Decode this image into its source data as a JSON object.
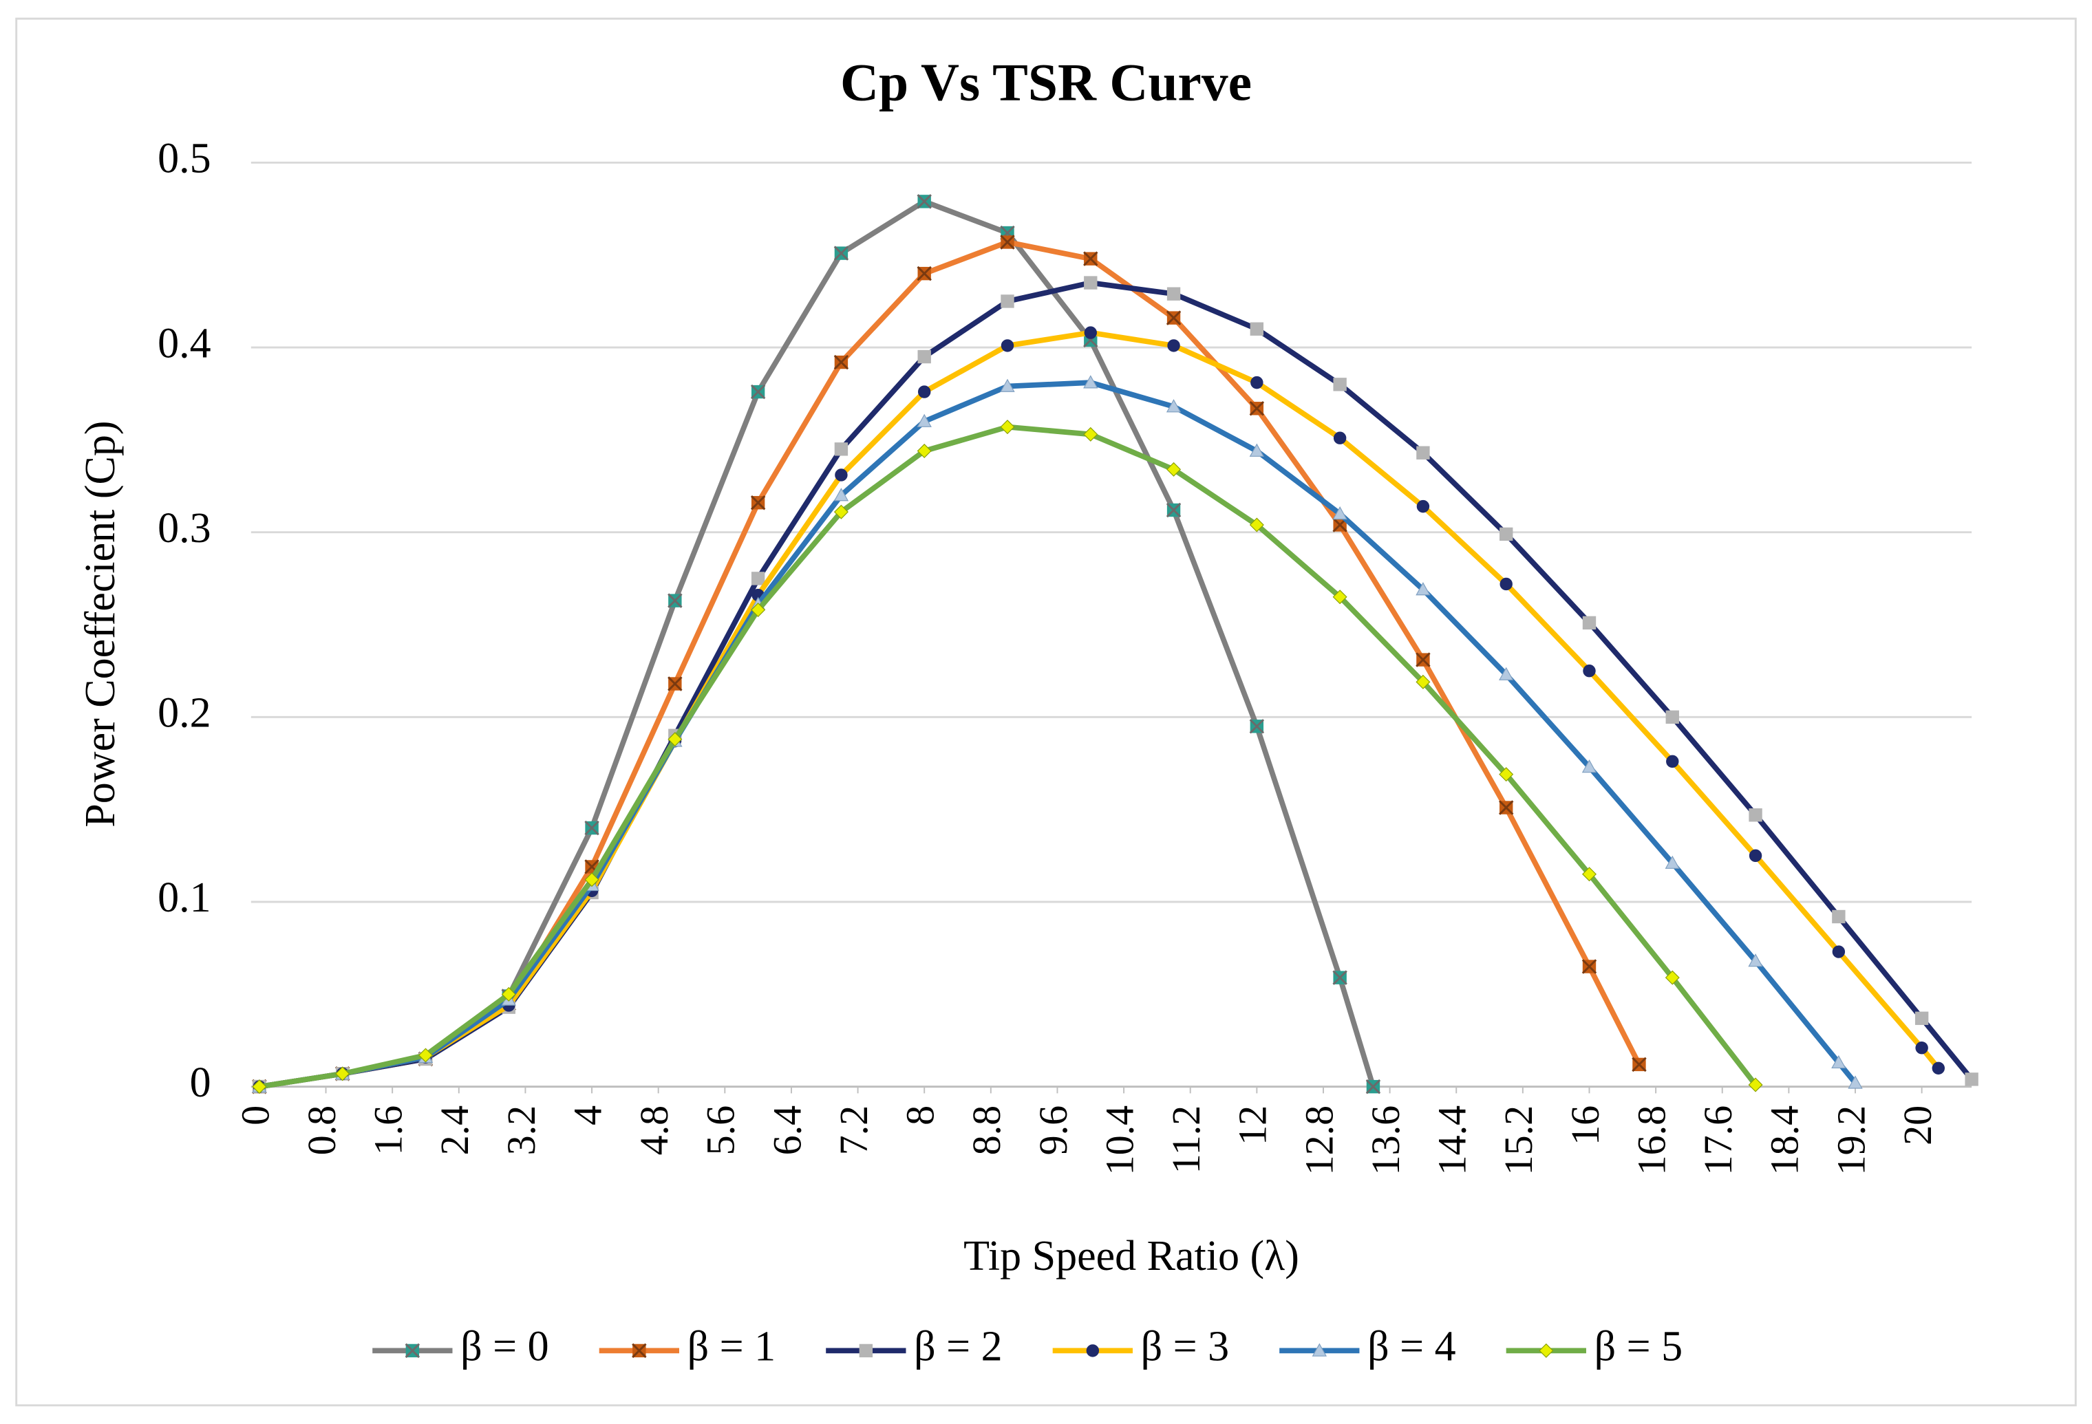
{
  "chart_data": {
    "type": "line",
    "title": "Cp Vs TSR Curve",
    "x_label": "Tip Speed Ratio (λ)",
    "y_label": "Power Coeffecient (Cp)",
    "xlim": [
      -0.1,
      20.6
    ],
    "ylim": [
      0,
      0.5
    ],
    "xticks": [
      0,
      0.8,
      1.6,
      2.4,
      3.2,
      4,
      4.8,
      5.6,
      6.4,
      7.2,
      8,
      8.8,
      9.6,
      10.4,
      11.2,
      12,
      12.8,
      13.6,
      14.4,
      15.2,
      16,
      16.8,
      17.6,
      18.4,
      19.2,
      20
    ],
    "yticks": [
      0,
      0.1,
      0.2,
      0.3,
      0.4,
      0.5
    ],
    "grid": true,
    "legend": "bottom",
    "series": [
      {
        "name": "β = 0",
        "color": "#7f7f7f",
        "marker": "square-x",
        "marker_color": "#2a9d8f",
        "x": [
          0,
          1,
          2,
          3,
          4,
          5,
          6,
          7,
          8,
          9,
          10,
          11,
          12,
          13,
          13.4
        ],
        "values": [
          0,
          0.007,
          0.015,
          0.049,
          0.14,
          0.263,
          0.376,
          0.451,
          0.479,
          0.462,
          0.404,
          0.312,
          0.195,
          0.059,
          0
        ]
      },
      {
        "name": "β = 1",
        "color": "#ed7d31",
        "marker": "square-x",
        "marker_color": "#c55a11",
        "x": [
          0,
          1,
          2,
          3,
          4,
          5,
          6,
          7,
          8,
          9,
          10,
          11,
          12,
          13,
          14,
          15,
          16,
          16.6
        ],
        "values": [
          0,
          0.007,
          0.015,
          0.045,
          0.119,
          0.218,
          0.316,
          0.392,
          0.44,
          0.457,
          0.448,
          0.416,
          0.367,
          0.304,
          0.231,
          0.151,
          0.065,
          0.012
        ]
      },
      {
        "name": "β = 2",
        "color": "#1f2a6b",
        "marker": "square",
        "marker_color": "#b4b4b4",
        "x": [
          0,
          1,
          2,
          3,
          4,
          5,
          6,
          7,
          8,
          9,
          10,
          11,
          12,
          13,
          14,
          15,
          16,
          17,
          18,
          19,
          20,
          20.6
        ],
        "values": [
          0,
          0.007,
          0.015,
          0.043,
          0.105,
          0.19,
          0.275,
          0.345,
          0.395,
          0.425,
          0.435,
          0.429,
          0.41,
          0.38,
          0.343,
          0.299,
          0.251,
          0.2,
          0.147,
          0.092,
          0.037,
          0.004
        ]
      },
      {
        "name": "β = 3",
        "color": "#ffc000",
        "marker": "circle",
        "marker_color": "#1f2a6b",
        "x": [
          0,
          1,
          2,
          3,
          4,
          5,
          6,
          7,
          8,
          9,
          10,
          11,
          12,
          13,
          14,
          15,
          16,
          17,
          18,
          19,
          20,
          20.2
        ],
        "values": [
          0,
          0.007,
          0.016,
          0.044,
          0.106,
          0.187,
          0.266,
          0.331,
          0.376,
          0.401,
          0.408,
          0.401,
          0.381,
          0.351,
          0.314,
          0.272,
          0.225,
          0.176,
          0.125,
          0.073,
          0.021,
          0.01
        ]
      },
      {
        "name": "β = 4",
        "color": "#2e75b6",
        "marker": "triangle",
        "marker_color": "#b4c9e0",
        "x": [
          0,
          1,
          2,
          3,
          4,
          5,
          6,
          7,
          8,
          9,
          10,
          11,
          12,
          13,
          14,
          15,
          16,
          17,
          18,
          19,
          19.2
        ],
        "values": [
          0,
          0.007,
          0.016,
          0.047,
          0.109,
          0.187,
          0.261,
          0.32,
          0.36,
          0.379,
          0.381,
          0.368,
          0.344,
          0.31,
          0.269,
          0.223,
          0.173,
          0.121,
          0.068,
          0.013,
          0.002
        ]
      },
      {
        "name": "β = 5",
        "color": "#70ad47",
        "marker": "diamond",
        "marker_color": "#e8f000",
        "x": [
          0,
          1,
          2,
          3,
          4,
          5,
          6,
          7,
          8,
          9,
          10,
          11,
          12,
          13,
          14,
          15,
          16,
          17,
          18
        ],
        "values": [
          0,
          0.007,
          0.017,
          0.05,
          0.112,
          0.188,
          0.258,
          0.311,
          0.344,
          0.357,
          0.353,
          0.334,
          0.304,
          0.265,
          0.219,
          0.169,
          0.115,
          0.059,
          0.001
        ]
      }
    ]
  }
}
